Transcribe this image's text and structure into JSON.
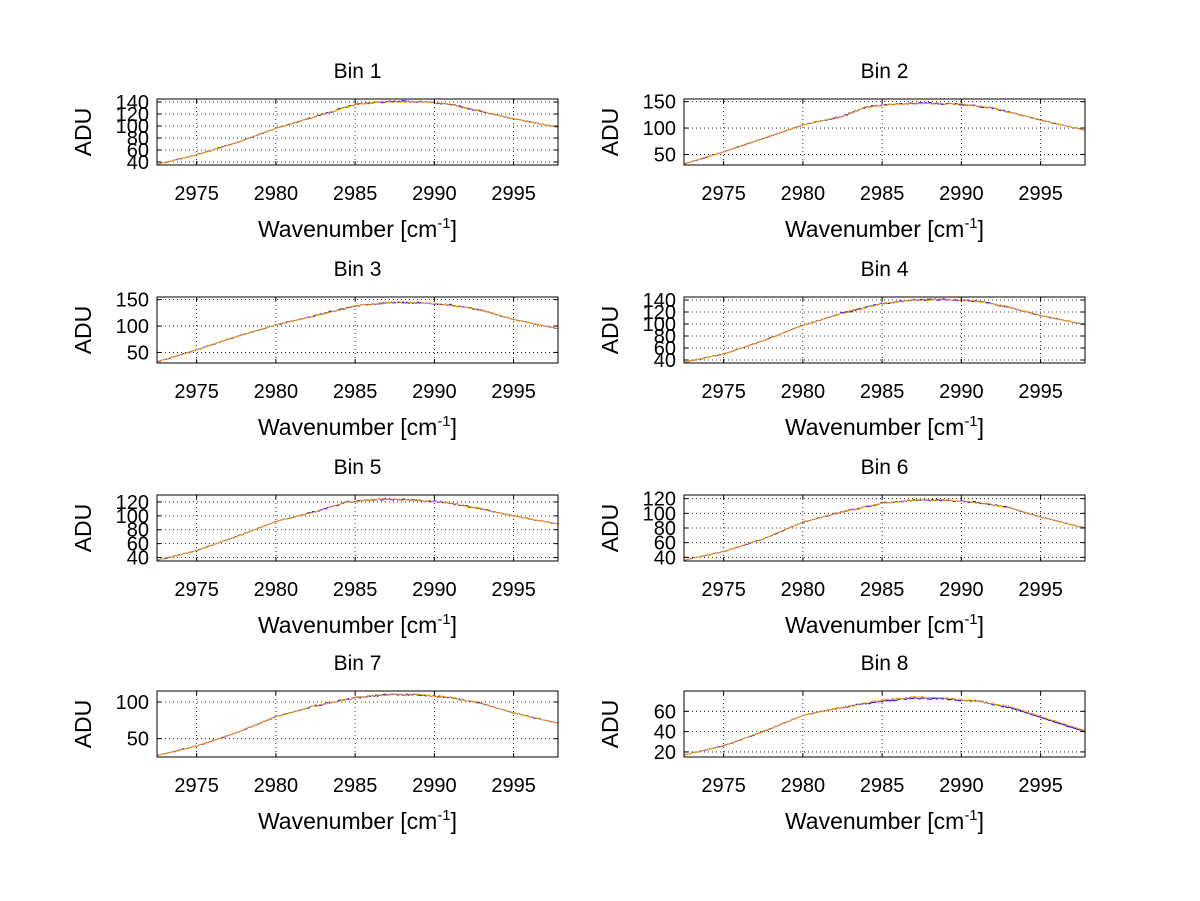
{
  "chart_data": [
    {
      "type": "line",
      "title": "Bin 1",
      "xlabel_main": "Wavenumber [cm",
      "xlabel_sup": "-1",
      "xlabel_tail": "]",
      "ylabel": "ADU",
      "xlim": [
        2972.5,
        2997.8
      ],
      "ylim": [
        35,
        145
      ],
      "x_ticks": [
        2975,
        2980,
        2985,
        2990,
        2995
      ],
      "y_ticks": [
        40,
        60,
        80,
        100,
        120,
        140
      ],
      "y_tick_labels": [
        "40",
        "60",
        "80",
        "100",
        "120",
        "140"
      ],
      "grid": true,
      "series": [
        {
          "color": "#0000ff",
          "x": [
            2972.5,
            2975,
            2977.5,
            2980,
            2982.5,
            2985,
            2986.5,
            2988,
            2989.5,
            2991,
            2993,
            2995,
            2997.8
          ],
          "values": [
            36,
            52,
            72,
            96,
            116,
            136,
            140,
            141,
            140,
            136,
            124,
            112,
            98
          ]
        },
        {
          "color": "#ff9900",
          "x": [
            2972.5,
            2975,
            2977.5,
            2980,
            2982.5,
            2985,
            2986.5,
            2988,
            2989.5,
            2991,
            2993,
            2995,
            2997.8
          ],
          "values": [
            36,
            52,
            72,
            96,
            116,
            136,
            140,
            141,
            140,
            136,
            124,
            112,
            98
          ]
        }
      ]
    },
    {
      "type": "line",
      "title": "Bin 2",
      "xlabel_main": "Wavenumber [cm",
      "xlabel_sup": "-1",
      "xlabel_tail": "]",
      "ylabel": "ADU",
      "xlim": [
        2972.5,
        2997.8
      ],
      "ylim": [
        30,
        155
      ],
      "x_ticks": [
        2975,
        2980,
        2985,
        2990,
        2995
      ],
      "y_ticks": [
        50,
        100,
        150
      ],
      "y_tick_labels": [
        "50",
        "100",
        "150"
      ],
      "grid": true,
      "series": [
        {
          "color": "#0000ff",
          "x": [
            2972.5,
            2975,
            2977.5,
            2980,
            2982.5,
            2984,
            2986,
            2988,
            2990,
            2992,
            2995,
            2997.8
          ],
          "values": [
            32,
            55,
            80,
            106,
            122,
            140,
            146,
            147,
            145,
            138,
            115,
            96
          ]
        },
        {
          "color": "#ff9900",
          "x": [
            2972.5,
            2975,
            2977.5,
            2980,
            2982.5,
            2984,
            2986,
            2988,
            2990,
            2992,
            2995,
            2997.8
          ],
          "values": [
            32,
            55,
            80,
            106,
            122,
            140,
            146,
            147,
            145,
            138,
            115,
            96
          ]
        }
      ]
    },
    {
      "type": "line",
      "title": "Bin 3",
      "xlabel_main": "Wavenumber [cm",
      "xlabel_sup": "-1",
      "xlabel_tail": "]",
      "ylabel": "ADU",
      "xlim": [
        2972.5,
        2997.8
      ],
      "ylim": [
        30,
        155
      ],
      "x_ticks": [
        2975,
        2980,
        2985,
        2990,
        2995
      ],
      "y_ticks": [
        50,
        100,
        150
      ],
      "y_tick_labels": [
        "50",
        "100",
        "150"
      ],
      "grid": true,
      "series": [
        {
          "color": "#0000ff",
          "x": [
            2972.5,
            2975,
            2977.5,
            2980,
            2982.5,
            2985,
            2987,
            2989,
            2991,
            2993,
            2995,
            2997.8
          ],
          "values": [
            32,
            55,
            80,
            102,
            120,
            138,
            144,
            144,
            140,
            130,
            112,
            95
          ]
        },
        {
          "color": "#ff9900",
          "x": [
            2972.5,
            2975,
            2977.5,
            2980,
            2982.5,
            2985,
            2987,
            2989,
            2991,
            2993,
            2995,
            2997.8
          ],
          "values": [
            32,
            55,
            80,
            102,
            120,
            138,
            144,
            144,
            140,
            130,
            112,
            95
          ]
        }
      ]
    },
    {
      "type": "line",
      "title": "Bin 4",
      "xlabel_main": "Wavenumber [cm",
      "xlabel_sup": "-1",
      "xlabel_tail": "]",
      "ylabel": "ADU",
      "xlim": [
        2972.5,
        2997.8
      ],
      "ylim": [
        35,
        145
      ],
      "x_ticks": [
        2975,
        2980,
        2985,
        2990,
        2995
      ],
      "y_ticks": [
        40,
        60,
        80,
        100,
        120,
        140
      ],
      "y_tick_labels": [
        "40",
        "60",
        "80",
        "100",
        "120",
        "140"
      ],
      "grid": true,
      "series": [
        {
          "color": "#0000ff",
          "x": [
            2972.5,
            2975,
            2977.5,
            2980,
            2982.5,
            2985,
            2987,
            2989,
            2991,
            2993,
            2995,
            2997.8
          ],
          "values": [
            36,
            50,
            72,
            98,
            118,
            134,
            140,
            141,
            138,
            128,
            114,
            99
          ]
        },
        {
          "color": "#ff9900",
          "x": [
            2972.5,
            2975,
            2977.5,
            2980,
            2982.5,
            2985,
            2987,
            2989,
            2991,
            2993,
            2995,
            2997.8
          ],
          "values": [
            36,
            50,
            72,
            98,
            118,
            134,
            140,
            141,
            138,
            128,
            114,
            99
          ]
        }
      ]
    },
    {
      "type": "line",
      "title": "Bin 5",
      "xlabel_main": "Wavenumber [cm",
      "xlabel_sup": "-1",
      "xlabel_tail": "]",
      "ylabel": "ADU",
      "xlim": [
        2972.5,
        2997.8
      ],
      "ylim": [
        35,
        130
      ],
      "x_ticks": [
        2975,
        2980,
        2985,
        2990,
        2995
      ],
      "y_ticks": [
        40,
        60,
        80,
        100,
        120
      ],
      "y_tick_labels": [
        "40",
        "60",
        "80",
        "100",
        "120"
      ],
      "grid": true,
      "series": [
        {
          "color": "#0000ff",
          "x": [
            2972.5,
            2975,
            2977.5,
            2980,
            2982.5,
            2984.5,
            2986.5,
            2988.5,
            2990.5,
            2992.5,
            2995,
            2997.8
          ],
          "values": [
            36,
            50,
            70,
            92,
            106,
            120,
            124,
            123,
            120,
            112,
            100,
            88
          ]
        },
        {
          "color": "#ff9900",
          "x": [
            2972.5,
            2975,
            2977.5,
            2980,
            2982.5,
            2984.5,
            2986.5,
            2988.5,
            2990.5,
            2992.5,
            2995,
            2997.8
          ],
          "values": [
            36,
            50,
            70,
            92,
            106,
            120,
            124,
            123,
            120,
            112,
            100,
            88
          ]
        }
      ]
    },
    {
      "type": "line",
      "title": "Bin 6",
      "xlabel_main": "Wavenumber [cm",
      "xlabel_sup": "-1",
      "xlabel_tail": "]",
      "ylabel": "ADU",
      "xlim": [
        2972.5,
        2997.8
      ],
      "ylim": [
        35,
        125
      ],
      "x_ticks": [
        2975,
        2980,
        2985,
        2990,
        2995
      ],
      "y_ticks": [
        40,
        60,
        80,
        100,
        120
      ],
      "y_tick_labels": [
        "40",
        "60",
        "80",
        "100",
        "120"
      ],
      "grid": true,
      "series": [
        {
          "color": "#0000ff",
          "x": [
            2972.5,
            2975,
            2977.5,
            2980,
            2982.5,
            2985,
            2987,
            2989,
            2991,
            2993,
            2995,
            2997.8
          ],
          "values": [
            36,
            48,
            65,
            88,
            102,
            114,
            118,
            118,
            115,
            108,
            95,
            80
          ]
        },
        {
          "color": "#ff9900",
          "x": [
            2972.5,
            2975,
            2977.5,
            2980,
            2982.5,
            2985,
            2987,
            2989,
            2991,
            2993,
            2995,
            2997.8
          ],
          "values": [
            36,
            48,
            65,
            88,
            102,
            114,
            118,
            118,
            115,
            108,
            95,
            80
          ]
        }
      ]
    },
    {
      "type": "line",
      "title": "Bin 7",
      "xlabel_main": "Wavenumber [cm",
      "xlabel_sup": "-1",
      "xlabel_tail": "]",
      "ylabel": "ADU",
      "xlim": [
        2972.5,
        2997.8
      ],
      "ylim": [
        25,
        115
      ],
      "x_ticks": [
        2975,
        2980,
        2985,
        2990,
        2995
      ],
      "y_ticks": [
        50,
        100
      ],
      "y_tick_labels": [
        "50",
        "100"
      ],
      "grid": true,
      "series": [
        {
          "color": "#0000ff",
          "x": [
            2972.5,
            2975,
            2977.5,
            2980,
            2982.5,
            2985,
            2987,
            2989,
            2991,
            2993,
            2995,
            2997.8
          ],
          "values": [
            27,
            40,
            58,
            80,
            95,
            106,
            110,
            110,
            106,
            98,
            85,
            71
          ]
        },
        {
          "color": "#ff9900",
          "x": [
            2972.5,
            2975,
            2977.5,
            2980,
            2982.5,
            2985,
            2987,
            2989,
            2991,
            2993,
            2995,
            2997.8
          ],
          "values": [
            27,
            40,
            58,
            80,
            95,
            106,
            110,
            110,
            106,
            98,
            85,
            71
          ]
        }
      ]
    },
    {
      "type": "line",
      "title": "Bin 8",
      "xlabel_main": "Wavenumber [cm",
      "xlabel_sup": "-1",
      "xlabel_tail": "]",
      "ylabel": "ADU",
      "xlim": [
        2972.5,
        2997.8
      ],
      "ylim": [
        15,
        80
      ],
      "x_ticks": [
        2975,
        2980,
        2985,
        2990,
        2995
      ],
      "y_ticks": [
        20,
        40,
        60
      ],
      "y_tick_labels": [
        "20",
        "40",
        "60"
      ],
      "grid": true,
      "series": [
        {
          "color": "#0000ff",
          "x": [
            2972.5,
            2975,
            2977.5,
            2980,
            2982.5,
            2985,
            2987,
            2989,
            2991,
            2993,
            2995,
            2997.8
          ],
          "values": [
            17,
            26,
            40,
            56,
            64,
            70,
            73,
            72,
            70,
            64,
            54,
            40
          ]
        },
        {
          "color": "#ff9900",
          "x": [
            2972.5,
            2975,
            2977.5,
            2980,
            2982.5,
            2985,
            2987,
            2989,
            2991,
            2993,
            2995,
            2997.8
          ],
          "values": [
            17,
            26,
            40,
            56,
            64,
            71,
            74,
            73,
            70,
            65,
            55,
            41
          ]
        }
      ]
    }
  ]
}
